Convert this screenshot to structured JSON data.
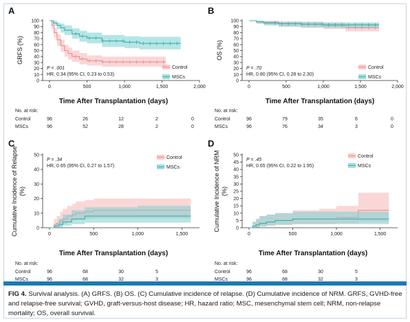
{
  "caption": {
    "fig_label": "FIG 4.",
    "text": "Survival analysis. (A) GRFS. (B) OS. (C) Cumulative incidence of relapse. (D) Cumulative incidence of NRM. GRFS, GVHD-free and relapse-free survival; GVHD, graft-versus-host disease; HR, hazard ratio; MSC, mesenchymal stem cell; NRM, non-relapse mortality; OS, overall survival."
  },
  "colors": {
    "control": "#f08c8c",
    "control_fill": "#f6b6b6",
    "mscs": "#3ab0b0",
    "mscs_fill": "#7ccfd0",
    "bar": "#1e78b4"
  },
  "chart_data": [
    {
      "panel": "A",
      "type": "line",
      "xlabel": "Time After Transplantation (days)",
      "ylabel": "GRFS (%)",
      "xlim": [
        0,
        2000
      ],
      "ylim": [
        0,
        100
      ],
      "xticks": [
        "0",
        "500",
        "1,000",
        "1,500",
        "2,000"
      ],
      "yticks": [
        "0",
        "10",
        "20",
        "30",
        "40",
        "50",
        "60",
        "70",
        "80",
        "90",
        "100"
      ],
      "stats": [
        "P < .001",
        "HR, 0.34 (95% CI, 0.23 to 0.53)"
      ],
      "legend": [
        "Control",
        "MSCs"
      ],
      "legend_position": "right",
      "series": [
        {
          "name": "Control",
          "x": [
            0,
            30,
            60,
            100,
            150,
            200,
            250,
            300,
            400,
            500,
            700,
            1000,
            1550
          ],
          "values": [
            100,
            92,
            80,
            68,
            58,
            50,
            45,
            40,
            36,
            33,
            31,
            31,
            31
          ],
          "ci_low": [
            100,
            86,
            72,
            58,
            48,
            40,
            35,
            31,
            27,
            25,
            23,
            23,
            23
          ],
          "ci_high": [
            100,
            98,
            88,
            77,
            68,
            60,
            55,
            50,
            46,
            42,
            40,
            40,
            40
          ]
        },
        {
          "name": "MSCs",
          "x": [
            0,
            50,
            100,
            150,
            200,
            300,
            400,
            500,
            700,
            1000,
            1200,
            1750
          ],
          "values": [
            100,
            96,
            92,
            88,
            84,
            78,
            74,
            71,
            66,
            64,
            62,
            62
          ],
          "ci_low": [
            100,
            92,
            86,
            80,
            76,
            70,
            65,
            62,
            56,
            54,
            52,
            52
          ],
          "ci_high": [
            100,
            100,
            97,
            95,
            92,
            87,
            83,
            80,
            76,
            74,
            73,
            73
          ]
        }
      ],
      "risk_table": {
        "title": "No. at risk:",
        "rows": [
          {
            "label": "Control",
            "values": [
              "96",
              "26",
              "12",
              "2",
              "0"
            ]
          },
          {
            "label": "MSCs",
            "values": [
              "96",
              "52",
              "28",
              "2",
              "0"
            ]
          }
        ]
      }
    },
    {
      "panel": "B",
      "type": "line",
      "xlabel": "Time After Transplantation (days)",
      "ylabel": "OS (%)",
      "xlim": [
        0,
        2000
      ],
      "ylim": [
        0,
        100
      ],
      "xticks": [
        "0",
        "500",
        "1,000",
        "1,500",
        "2,000"
      ],
      "yticks": [
        "0",
        "10",
        "20",
        "30",
        "40",
        "50",
        "60",
        "70",
        "80",
        "90",
        "100"
      ],
      "stats": [
        "P = .70",
        "HR, 0.80 (95% CI, 0.28 to 2.30)"
      ],
      "legend": [
        "Control",
        "MSCs"
      ],
      "legend_position": "bottom-right",
      "series": [
        {
          "name": "Control",
          "x": [
            0,
            100,
            200,
            400,
            700,
            1000,
            1300,
            1750
          ],
          "values": [
            100,
            98,
            97,
            95,
            94,
            92,
            88,
            88
          ],
          "ci_low": [
            100,
            95,
            93,
            90,
            88,
            86,
            82,
            82
          ],
          "ci_high": [
            100,
            100,
            100,
            99,
            98,
            97,
            95,
            95
          ]
        },
        {
          "name": "MSCs",
          "x": [
            0,
            100,
            200,
            400,
            700,
            1000,
            1300,
            1750
          ],
          "values": [
            100,
            98,
            96,
            95,
            94,
            93,
            93,
            93
          ],
          "ci_low": [
            100,
            95,
            92,
            90,
            89,
            88,
            88,
            88
          ],
          "ci_high": [
            100,
            100,
            99,
            98,
            98,
            97,
            97,
            97
          ]
        }
      ],
      "risk_table": {
        "title": "No. at risk:",
        "rows": [
          {
            "label": "Control",
            "values": [
              "96",
              "79",
              "35",
              "6",
              "0"
            ]
          },
          {
            "label": "MSCs",
            "values": [
              "96",
              "76",
              "34",
              "3",
              "0"
            ]
          }
        ]
      }
    },
    {
      "panel": "C",
      "type": "line",
      "xlabel": "Time After Transplantation (days)",
      "ylabel": "Cumulative Incidence of Relapse (%)",
      "xlim": [
        0,
        1700
      ],
      "ylim": [
        0,
        50
      ],
      "xticks": [
        "0",
        "500",
        "1,000",
        "1,500"
      ],
      "yticks": [
        "0",
        "10",
        "20",
        "30",
        "40",
        "50"
      ],
      "stats": [
        "P = .34",
        "HR, 0.65 (95% CI, 0.27 to 1.57)"
      ],
      "legend": [
        "Control",
        "MSCs"
      ],
      "legend_position": "right",
      "series": [
        {
          "name": "Control",
          "x": [
            0,
            50,
            80,
            120,
            150,
            200,
            260,
            300,
            400,
            500,
            1000,
            1600
          ],
          "values": [
            0,
            2,
            3,
            5,
            6,
            8,
            9,
            10,
            11,
            12,
            12,
            12
          ],
          "ci_low": [
            0,
            0,
            0.5,
            1.5,
            2.5,
            4,
            5,
            5.5,
            6,
            6.5,
            6.5,
            6.5
          ],
          "ci_high": [
            0,
            6,
            8,
            11,
            13,
            15,
            16.5,
            18,
            19,
            20,
            20,
            20
          ]
        },
        {
          "name": "MSCs",
          "x": [
            0,
            60,
            100,
            150,
            250,
            400,
            1000,
            1600
          ],
          "values": [
            0,
            1,
            2,
            4,
            6,
            8,
            8,
            8
          ],
          "ci_low": [
            0,
            0,
            0.5,
            1.5,
            2.5,
            3.5,
            3.5,
            3.5
          ],
          "ci_high": [
            0,
            3,
            6,
            9,
            12,
            14,
            15,
            15
          ]
        }
      ],
      "risk_table": {
        "title": "No. at risk:",
        "rows": [
          {
            "label": "Control",
            "values": [
              "96",
              "68",
              "30",
              "5"
            ]
          },
          {
            "label": "MSCs",
            "values": [
              "96",
              "68",
              "32",
              "3"
            ]
          }
        ]
      }
    },
    {
      "panel": "D",
      "type": "line",
      "xlabel": "Time After Transplantation (days)",
      "ylabel": "Cumulative Incidence of NRM (%)",
      "xlim": [
        0,
        1700
      ],
      "ylim": [
        0,
        50
      ],
      "xticks": [
        "0",
        "500",
        "1,000",
        "1,500"
      ],
      "yticks": [
        "0",
        "5",
        "10",
        "15",
        "20",
        "25",
        "30",
        "35",
        "40",
        "45",
        "50"
      ],
      "stats": [
        "P = .45",
        "HR, 0.65 (95% CI, 0.22 to 1.95)"
      ],
      "legend": [
        "Control",
        "MSCs"
      ],
      "legend_position": "right",
      "series": [
        {
          "name": "Control",
          "x": [
            0,
            40,
            80,
            120,
            200,
            300,
            500,
            800,
            1000,
            1250,
            1600
          ],
          "values": [
            0,
            1,
            2,
            3,
            4,
            5,
            6,
            6,
            7,
            12,
            12
          ],
          "ci_low": [
            0,
            0,
            0.3,
            0.8,
            1.5,
            2,
            2.5,
            2.5,
            3,
            4,
            4
          ],
          "ci_high": [
            0,
            4,
            6,
            8,
            9,
            10,
            12,
            13,
            15,
            24,
            24
          ]
        },
        {
          "name": "MSCs",
          "x": [
            0,
            40,
            80,
            120,
            200,
            300,
            500,
            1600
          ],
          "values": [
            0,
            1,
            2,
            3,
            4,
            5,
            6,
            6
          ],
          "ci_low": [
            0,
            0,
            0.3,
            0.8,
            1.5,
            2,
            2.5,
            2.5
          ],
          "ci_high": [
            0,
            4,
            6,
            8,
            9,
            10,
            11,
            11
          ]
        }
      ],
      "risk_table": {
        "title": "No. at risk:",
        "rows": [
          {
            "label": "Control",
            "values": [
              "96",
              "68",
              "30",
              "5"
            ]
          },
          {
            "label": "MSCs",
            "values": [
              "96",
              "68",
              "32",
              "3"
            ]
          }
        ]
      }
    }
  ]
}
